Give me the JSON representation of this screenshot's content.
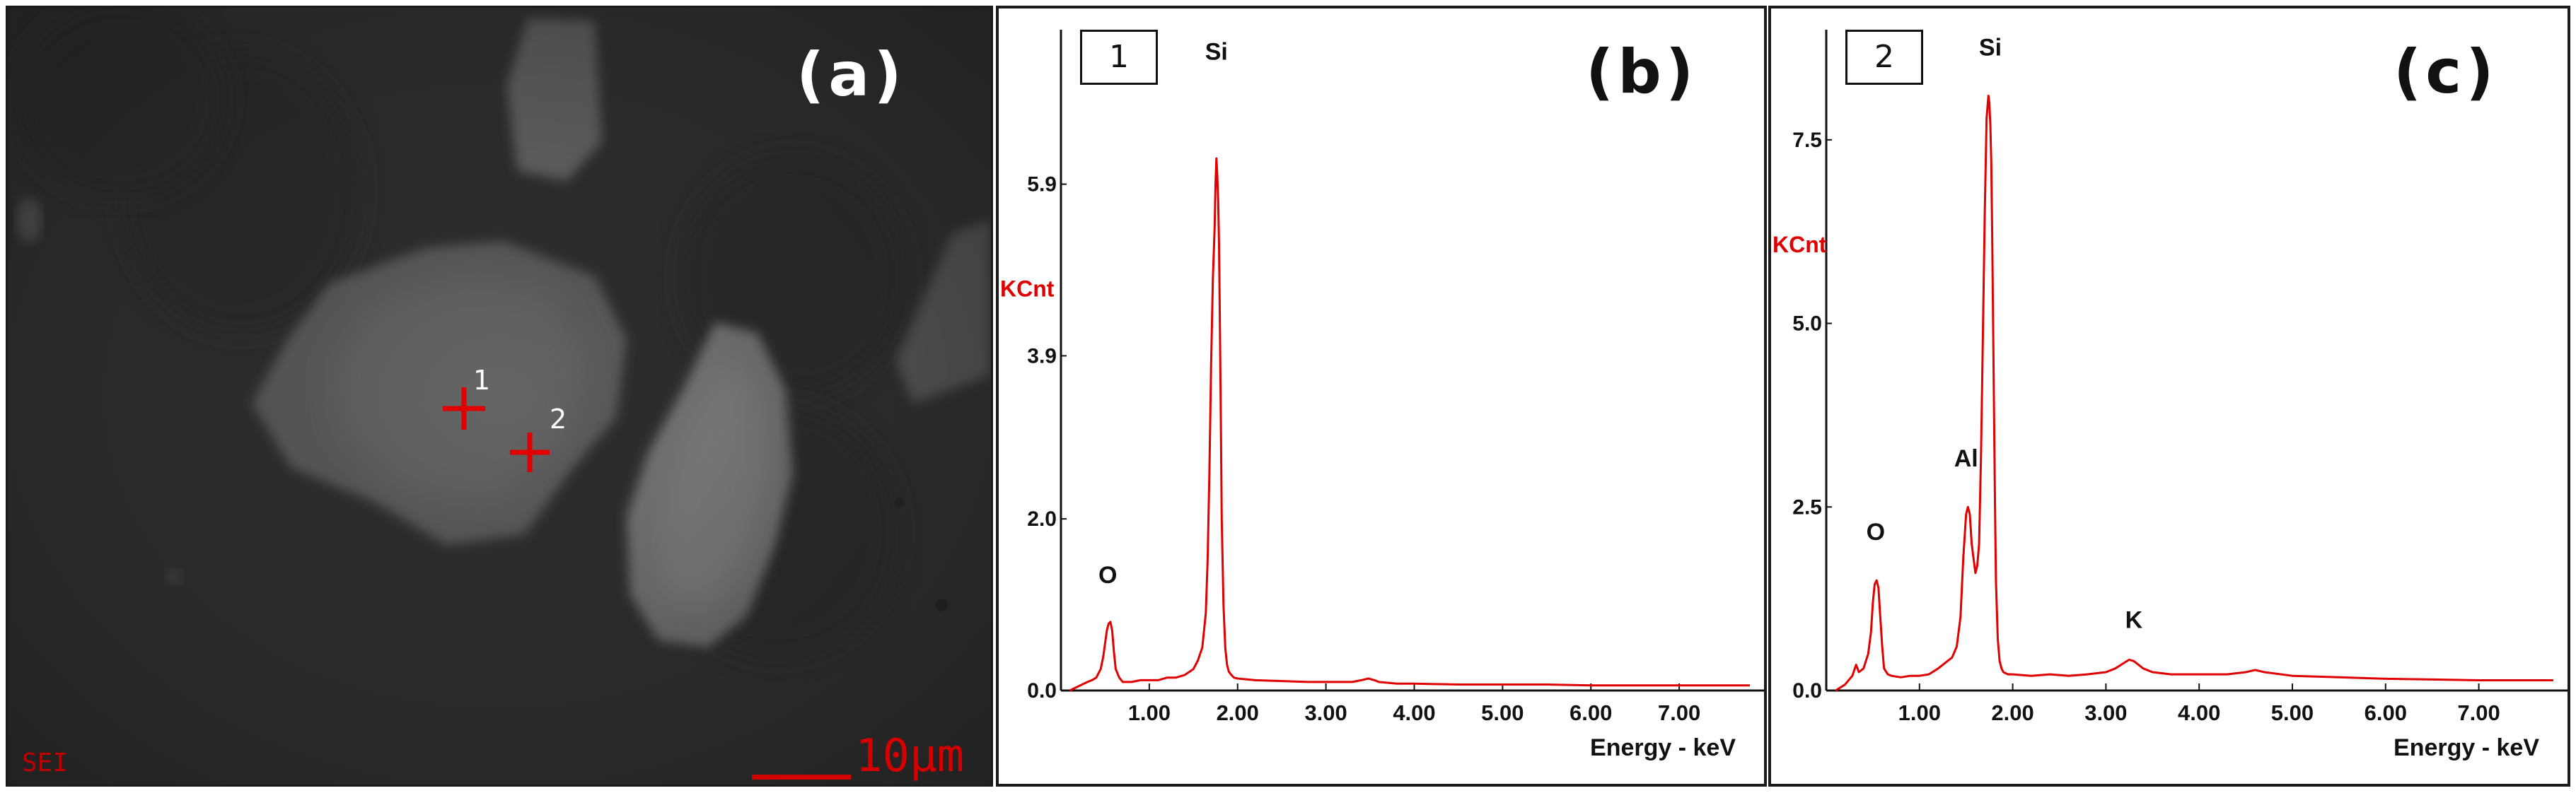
{
  "panel_a": {
    "label": "(a)",
    "mode": "SEI",
    "scale": "10μm",
    "points": [
      "1",
      "2"
    ],
    "marker_color": "#e00000"
  },
  "chart_data": [
    {
      "type": "line",
      "panel_label": "(b)",
      "box_label": "1",
      "ylabel": "KCnt",
      "xlabel": "Energy - keV",
      "xlim": [
        0.0,
        7.8
      ],
      "ylim": [
        0.0,
        7.7
      ],
      "yticks": [
        "0.0",
        "2.0",
        "3.9",
        "5.9"
      ],
      "ytick_values": [
        0.0,
        2.0,
        3.9,
        5.9
      ],
      "xticks": [
        "1.00",
        "2.00",
        "3.00",
        "4.00",
        "5.00",
        "6.00",
        "7.00"
      ],
      "xtick_values": [
        1.0,
        2.0,
        3.0,
        4.0,
        5.0,
        6.0,
        7.0
      ],
      "line_color": "#e00000",
      "series": [
        {
          "x": [
            0.1,
            0.2,
            0.3,
            0.35,
            0.4,
            0.45,
            0.48,
            0.5,
            0.52,
            0.54,
            0.56,
            0.58,
            0.6,
            0.62,
            0.66,
            0.7,
            0.8,
            0.9,
            1.0,
            1.1,
            1.2,
            1.3,
            1.4,
            1.5,
            1.55,
            1.6,
            1.64,
            1.66,
            1.68,
            1.7,
            1.72,
            1.74,
            1.75,
            1.76,
            1.77,
            1.78,
            1.79,
            1.8,
            1.81,
            1.82,
            1.84,
            1.86,
            1.88,
            1.9,
            1.93,
            1.96,
            2.0,
            2.2,
            2.5,
            2.8,
            3.0,
            3.3,
            3.4,
            3.48,
            3.55,
            3.6,
            3.8,
            4.0,
            4.5,
            5.0,
            5.5,
            6.0,
            6.5,
            7.0,
            7.5,
            7.8
          ],
          "y": [
            0.0,
            0.05,
            0.1,
            0.12,
            0.15,
            0.25,
            0.4,
            0.55,
            0.7,
            0.78,
            0.8,
            0.7,
            0.45,
            0.25,
            0.15,
            0.1,
            0.1,
            0.12,
            0.12,
            0.12,
            0.15,
            0.15,
            0.18,
            0.25,
            0.35,
            0.5,
            0.9,
            1.5,
            2.5,
            3.8,
            4.8,
            5.4,
            5.9,
            6.2,
            6.0,
            5.7,
            5.2,
            4.2,
            3.2,
            2.0,
            1.0,
            0.5,
            0.3,
            0.22,
            0.18,
            0.15,
            0.14,
            0.12,
            0.11,
            0.1,
            0.1,
            0.1,
            0.12,
            0.14,
            0.12,
            0.1,
            0.08,
            0.08,
            0.07,
            0.07,
            0.07,
            0.06,
            0.06,
            0.06,
            0.06,
            0.06
          ]
        }
      ],
      "peak_labels": [
        {
          "text": "O",
          "x": 0.53,
          "y": 1.25
        },
        {
          "text": "Si",
          "x": 1.76,
          "y": 7.35
        }
      ]
    },
    {
      "type": "line",
      "panel_label": "(c)",
      "box_label": "2",
      "ylabel": "KCnt",
      "xlabel": "Energy - keV",
      "xlim": [
        0.0,
        7.8
      ],
      "ylim": [
        0.0,
        9.0
      ],
      "yticks": [
        "0.0",
        "2.5",
        "5.0",
        "7.5"
      ],
      "ytick_values": [
        0.0,
        2.5,
        5.0,
        7.5
      ],
      "xticks": [
        "1.00",
        "2.00",
        "3.00",
        "4.00",
        "5.00",
        "6.00",
        "7.00"
      ],
      "xtick_values": [
        1.0,
        2.0,
        3.0,
        4.0,
        5.0,
        6.0,
        7.0
      ],
      "line_color": "#e00000",
      "series": [
        {
          "x": [
            0.1,
            0.2,
            0.28,
            0.32,
            0.35,
            0.4,
            0.45,
            0.48,
            0.5,
            0.52,
            0.54,
            0.56,
            0.58,
            0.6,
            0.62,
            0.66,
            0.7,
            0.8,
            0.9,
            1.0,
            1.1,
            1.2,
            1.3,
            1.35,
            1.4,
            1.44,
            1.47,
            1.5,
            1.52,
            1.54,
            1.56,
            1.58,
            1.6,
            1.62,
            1.64,
            1.66,
            1.68,
            1.7,
            1.72,
            1.74,
            1.75,
            1.76,
            1.77,
            1.78,
            1.79,
            1.8,
            1.81,
            1.82,
            1.84,
            1.86,
            1.88,
            1.9,
            1.95,
            2.0,
            2.2,
            2.4,
            2.6,
            2.8,
            3.0,
            3.1,
            3.2,
            3.25,
            3.3,
            3.35,
            3.4,
            3.5,
            3.7,
            4.0,
            4.3,
            4.5,
            4.6,
            4.7,
            5.0,
            5.5,
            6.0,
            6.5,
            7.0,
            7.5,
            7.8
          ],
          "y": [
            0.0,
            0.08,
            0.2,
            0.35,
            0.25,
            0.3,
            0.5,
            0.8,
            1.2,
            1.45,
            1.5,
            1.4,
            1.0,
            0.6,
            0.3,
            0.22,
            0.2,
            0.18,
            0.2,
            0.2,
            0.22,
            0.3,
            0.4,
            0.45,
            0.6,
            1.0,
            1.8,
            2.4,
            2.5,
            2.4,
            2.0,
            1.8,
            1.6,
            1.7,
            2.0,
            3.2,
            4.8,
            6.5,
            7.8,
            8.1,
            8.0,
            7.7,
            7.2,
            6.2,
            5.0,
            3.8,
            2.6,
            1.5,
            0.7,
            0.4,
            0.3,
            0.25,
            0.22,
            0.22,
            0.2,
            0.22,
            0.2,
            0.22,
            0.25,
            0.3,
            0.38,
            0.42,
            0.4,
            0.35,
            0.3,
            0.25,
            0.22,
            0.22,
            0.22,
            0.25,
            0.28,
            0.25,
            0.2,
            0.18,
            0.16,
            0.15,
            0.14,
            0.14,
            0.14
          ]
        }
      ],
      "peak_labels": [
        {
          "text": "O",
          "x": 0.53,
          "y": 2.05
        },
        {
          "text": "Al",
          "x": 1.5,
          "y": 3.05
        },
        {
          "text": "K",
          "x": 3.3,
          "y": 0.85
        },
        {
          "text": "Si",
          "x": 1.76,
          "y": 8.65
        }
      ]
    }
  ]
}
